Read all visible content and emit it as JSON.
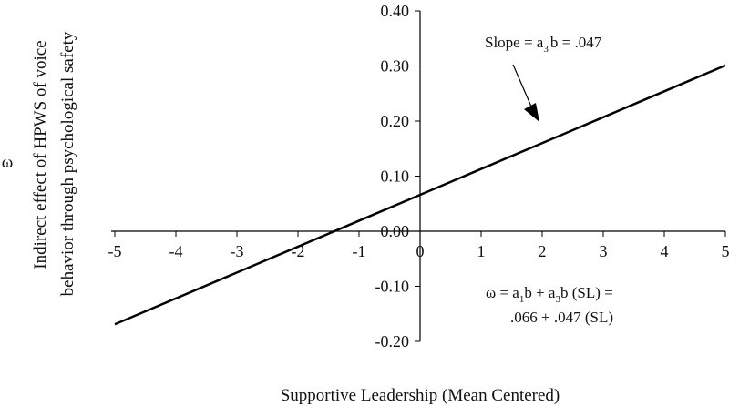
{
  "chart_data": {
    "type": "line",
    "title": "",
    "xlabel": "Supportive Leadership (Mean Centered)",
    "ylabel_line1": "Indirect effect of HPWS of voice",
    "ylabel_line2": "behavior through psychological safety",
    "ylabel_symbol": "ω",
    "xlim": [
      -5,
      5
    ],
    "ylim": [
      -0.2,
      0.4
    ],
    "x_ticks": [
      -5,
      -4,
      -3,
      -2,
      -1,
      0,
      1,
      2,
      3,
      4,
      5
    ],
    "x_tick_labels": [
      "-5",
      "-4",
      "-3",
      "-2",
      "-1",
      "0",
      "1",
      "2",
      "3",
      "4",
      "5"
    ],
    "y_ticks": [
      0.4,
      0.3,
      0.2,
      0.1,
      0.0,
      -0.1,
      -0.2
    ],
    "y_tick_labels": [
      "0.40",
      "0.30",
      "0.20",
      "0.10",
      "0.00",
      "-0.10",
      "-0.20"
    ],
    "grid": false,
    "series": [
      {
        "x": [
          -5,
          5
        ],
        "y": [
          -0.169,
          0.301
        ]
      }
    ],
    "annotations": {
      "slope": {
        "prefix": "Slope = a",
        "sub": "3",
        "suffix": "b = .047"
      },
      "equation_line1": {
        "p1": "ω = a",
        "s1": "1",
        "p2": "b + a",
        "s2": "3",
        "p3": "b (SL) ="
      },
      "equation_line2": ".066 + .047 (SL)"
    }
  }
}
